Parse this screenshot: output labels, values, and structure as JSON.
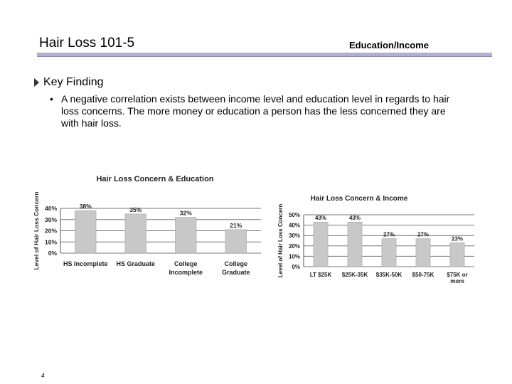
{
  "header": {
    "title": "Hair Loss 101-5",
    "section": "Education/Income"
  },
  "finding": {
    "label": "Key Finding",
    "bullet": "A negative correlation exists between income level and education level in regards to hair loss concerns. The more money or education a person has the less concerned they are with hair loss."
  },
  "page_number": "4",
  "chart_data": [
    {
      "type": "bar",
      "title": "Hair Loss Concern & Education",
      "ylabel": "Level of Hair Loss Concern",
      "xlabel": "",
      "categories": [
        "HS Incomplete",
        "HS Graduate",
        "College Incomplete",
        "College Graduate"
      ],
      "values": [
        38,
        35,
        32,
        21
      ],
      "data_labels": [
        "38%",
        "35%",
        "32%",
        "21%"
      ],
      "ylim": [
        0,
        40
      ],
      "yticks": [
        "40%",
        "30%",
        "20%",
        "10%",
        "0%"
      ],
      "grid": true,
      "bar_color": "#c8c8c8"
    },
    {
      "type": "bar",
      "title": "Hair Loss Concern & Income",
      "ylabel": "Level of Hair Loss Concern",
      "xlabel": "",
      "categories": [
        "LT $25K",
        "$25K-35K",
        "$35K-50K",
        "$50-75K",
        "$75K or more"
      ],
      "values": [
        43,
        43,
        27,
        27,
        23
      ],
      "data_labels": [
        "43%",
        "43%",
        "27%",
        "27%",
        "23%"
      ],
      "ylim": [
        0,
        50
      ],
      "yticks": [
        "50%",
        "40%",
        "30%",
        "20%",
        "10%",
        "0%"
      ],
      "grid": true,
      "bar_color": "#c8c8c8"
    }
  ]
}
